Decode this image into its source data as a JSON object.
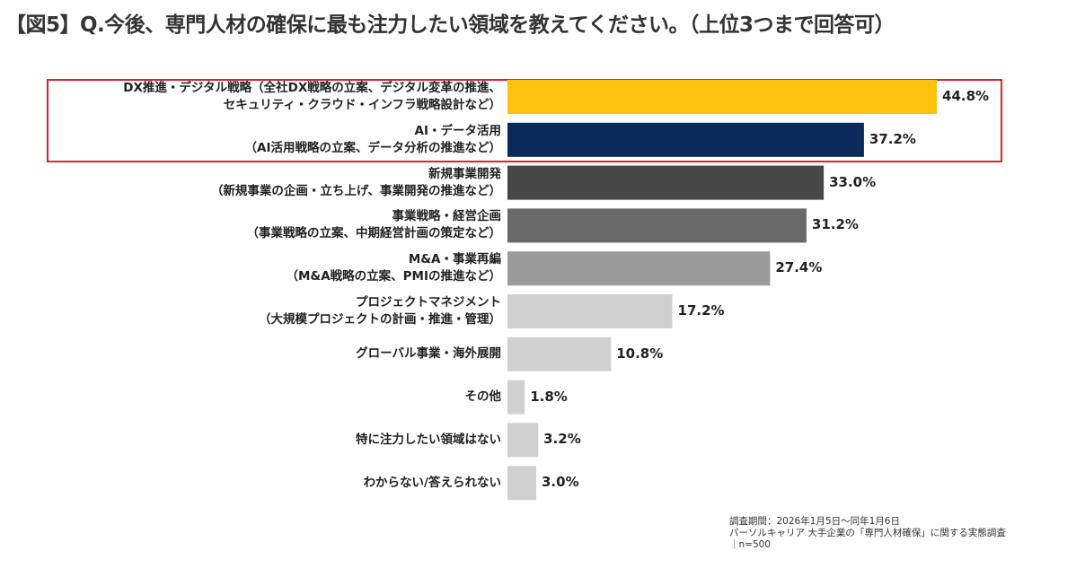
{
  "chart_data": {
    "type": "bar",
    "orientation": "horizontal",
    "title": "【図5】Q.今後、専門人材の確保に最も注力したい領域を教えてください。（上位3つまで回答可）",
    "categories": [
      [
        "DX推進・デジタル戦略（全社DX戦略の立案、デジタル変革の推進、",
        "セキュリティ・クラウド・インフラ戦略設計など）"
      ],
      [
        "AI・データ活用",
        "（AI活用戦略の立案、データ分析の推進など）"
      ],
      [
        "新規事業開発",
        "（新規事業の企画・立ち上げ、事業開発の推進など）"
      ],
      [
        "事業戦略・経営企画",
        "（事業戦略の立案、中期経営計画の策定など）"
      ],
      [
        "M&A・事業再編",
        "（M&A戦略の立案、PMIの推進など）"
      ],
      [
        "プロジェクトマネジメント",
        "（大規模プロジェクトの計画・推進・管理）"
      ],
      [
        "グローバル事業・海外展開"
      ],
      [
        "その他"
      ],
      [
        "特に注力したい領域はない"
      ],
      [
        "わからない/答えられない"
      ]
    ],
    "values": [
      44.8,
      37.2,
      33.0,
      31.2,
      27.4,
      17.2,
      10.8,
      1.8,
      3.2,
      3.0
    ],
    "value_labels": [
      "44.8%",
      "37.2%",
      "33.0%",
      "31.2%",
      "27.4%",
      "17.2%",
      "10.8%",
      "1.8%",
      "3.2%",
      "3.0%"
    ],
    "colors": [
      "#FFC20E",
      "#0B2A5B",
      "#464646",
      "#6A6A6A",
      "#9B9B9B",
      "#D0D0D0",
      "#D0D0D0",
      "#D0D0D0",
      "#D0D0D0",
      "#D0D0D0"
    ],
    "highlight_color": "#D9242B",
    "xlim": [
      0,
      50
    ],
    "grid": false,
    "legend": "none"
  },
  "footer": {
    "period": "調査期間：2026年1月5日～同年1月6日",
    "source": "パーソルキャリア 大手企業の「専門人材確保」に関する実態調査",
    "sample": "｜n=500"
  }
}
